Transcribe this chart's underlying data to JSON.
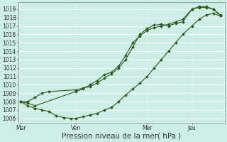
{
  "bg_color": "#cceee6",
  "grid_color": "#ffffff",
  "line_color": "#2d5a1b",
  "marker_color": "#2d5a1b",
  "ylim": [
    1005.5,
    1019.8
  ],
  "yticks": [
    1006,
    1007,
    1008,
    1009,
    1010,
    1011,
    1012,
    1013,
    1014,
    1015,
    1016,
    1017,
    1018,
    1019
  ],
  "xlabel": "Pression niveau de la mer( hPa )",
  "xtick_labels": [
    "Mar",
    "Ven",
    "Mer",
    "Jeu"
  ],
  "xtick_positions": [
    0.0,
    0.27,
    0.62,
    0.84
  ],
  "vline_positions": [
    0.0,
    0.27,
    0.62,
    0.84
  ],
  "series1_x": [
    0.0,
    0.035,
    0.07,
    0.105,
    0.14,
    0.175,
    0.21,
    0.245,
    0.27,
    0.305,
    0.34,
    0.375,
    0.41,
    0.445,
    0.48,
    0.515,
    0.55,
    0.585,
    0.62,
    0.655,
    0.69,
    0.725,
    0.76,
    0.795,
    0.84,
    0.875,
    0.91,
    0.945,
    0.98
  ],
  "series1_y": [
    1008.0,
    1007.5,
    1007.2,
    1007.0,
    1006.8,
    1006.3,
    1006.1,
    1006.0,
    1006.0,
    1006.2,
    1006.4,
    1006.6,
    1007.0,
    1007.3,
    1008.0,
    1008.8,
    1009.5,
    1010.2,
    1011.0,
    1012.0,
    1013.0,
    1014.0,
    1015.0,
    1016.0,
    1017.0,
    1017.8,
    1018.3,
    1018.5,
    1018.2
  ],
  "series2_x": [
    0.0,
    0.035,
    0.07,
    0.105,
    0.14,
    0.27,
    0.305,
    0.34,
    0.375,
    0.41,
    0.445,
    0.48,
    0.515,
    0.55,
    0.585,
    0.62,
    0.655,
    0.69,
    0.725,
    0.76,
    0.795,
    0.84,
    0.875,
    0.91,
    0.945,
    0.98
  ],
  "series2_y": [
    1008.0,
    1008.0,
    1008.5,
    1009.0,
    1009.2,
    1009.4,
    1009.6,
    1009.8,
    1010.2,
    1010.8,
    1011.3,
    1012.0,
    1013.0,
    1014.5,
    1016.0,
    1016.7,
    1017.1,
    1017.2,
    1017.0,
    1017.3,
    1017.5,
    1019.0,
    1019.2,
    1019.2,
    1019.0,
    1018.2
  ],
  "series3_x": [
    0.0,
    0.035,
    0.07,
    0.27,
    0.305,
    0.34,
    0.375,
    0.41,
    0.445,
    0.48,
    0.515,
    0.55,
    0.585,
    0.62,
    0.655,
    0.69,
    0.725,
    0.76,
    0.795,
    0.84,
    0.875,
    0.91,
    0.945,
    0.98
  ],
  "series3_y": [
    1008.0,
    1007.8,
    1007.5,
    1009.2,
    1009.5,
    1010.0,
    1010.5,
    1011.2,
    1011.5,
    1012.2,
    1013.5,
    1015.0,
    1015.8,
    1016.5,
    1016.8,
    1017.0,
    1017.2,
    1017.5,
    1017.8,
    1019.0,
    1019.3,
    1019.3,
    1019.0,
    1018.3
  ],
  "tick_fontsize": 5.5,
  "xlabel_fontsize": 7.5
}
